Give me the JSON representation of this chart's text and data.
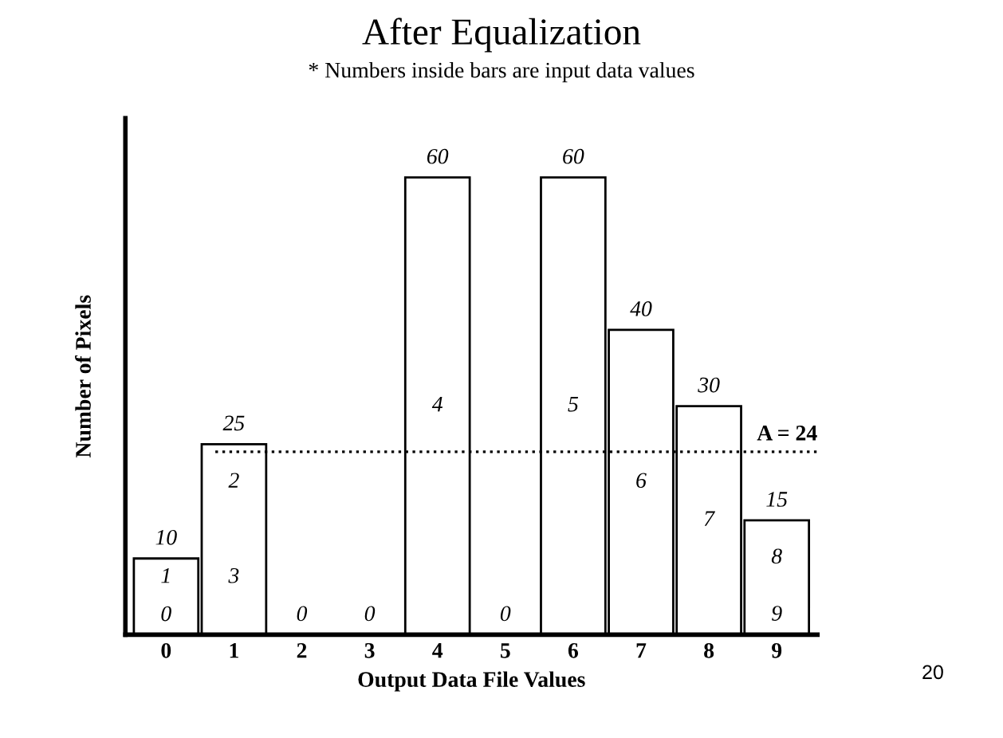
{
  "chart_data": {
    "type": "bar",
    "title": "After Equalization",
    "subtitle": "* Numbers inside bars are input data values",
    "xlabel": "Output Data File Values",
    "ylabel": "Number of Pixels",
    "categories": [
      "0",
      "1",
      "2",
      "3",
      "4",
      "5",
      "6",
      "7",
      "8",
      "9"
    ],
    "values": [
      10,
      25,
      0,
      0,
      60,
      0,
      60,
      40,
      30,
      15
    ],
    "color": "#ffffff",
    "data_labels": true,
    "ref_lines": [
      {
        "axis": "y",
        "value": 24,
        "label": "A = 24",
        "line_style": "dotted",
        "color": "#000000"
      }
    ],
    "annotations": [
      "0",
      "1",
      "3",
      "2",
      "4",
      "5",
      "6",
      "7",
      "9",
      "8",
      "20"
    ],
    "tick_labels": "x",
    "legend": false,
    "grid": false
  }
}
